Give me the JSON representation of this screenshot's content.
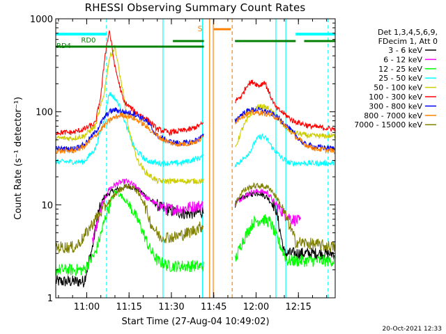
{
  "chart_data": {
    "type": "line",
    "title": "RHESSI Observing Summary Count Rates",
    "xlabel": "Start Time (27-Aug-04 10:49:02)",
    "ylabel": "Count Rate (s⁻¹ detector⁻¹)",
    "yscale": "log",
    "ylim": [
      1,
      1000
    ],
    "xlim_minutes_after_start": [
      0,
      99
    ],
    "x_ticks": [
      {
        "label": "11:00",
        "t": 10.97
      },
      {
        "label": "11:15",
        "t": 25.97
      },
      {
        "label": "11:30",
        "t": 40.97
      },
      {
        "label": "11:45",
        "t": 55.97
      },
      {
        "label": "12:00",
        "t": 70.97
      },
      {
        "label": "12:15",
        "t": 85.97
      }
    ],
    "y_ticks": [
      {
        "label": "1",
        "v": 1
      },
      {
        "label": "10",
        "v": 10
      },
      {
        "label": "100",
        "v": 100
      },
      {
        "label": "1000",
        "v": 1000
      }
    ],
    "legend": {
      "placement": "right",
      "header": [
        "Det 1,3,4,5,6,9,",
        "FDecim 1, Att 0"
      ]
    },
    "gap_minutes": [
      52.5,
      63.5
    ],
    "series": [
      {
        "name": "3 - 6 keV",
        "color": "#000000",
        "t": [
          0,
          7,
          10,
          13,
          15,
          17,
          20,
          23,
          26,
          30,
          34,
          38,
          42,
          46,
          50,
          52.5,
          63.5,
          66,
          69,
          72,
          75,
          78,
          81,
          99
        ],
        "values": [
          1.5,
          1.5,
          1.5,
          3.5,
          8,
          12,
          14,
          15,
          16,
          14,
          11,
          9,
          8.5,
          8,
          8.2,
          8.5,
          10,
          12,
          13,
          13.5,
          12,
          9,
          3,
          3
        ]
      },
      {
        "name": "6 - 12 keV",
        "color": "#ff00ff",
        "t": [
          13,
          16,
          19,
          22,
          25,
          28,
          32,
          36,
          40,
          44,
          48,
          52.5,
          63.5,
          66,
          69,
          72,
          75,
          78,
          81,
          84,
          87
        ],
        "values": [
          4,
          9,
          15,
          17,
          18,
          16,
          12,
          10,
          9,
          9,
          9.5,
          10,
          10,
          12,
          13.5,
          14,
          13.5,
          10,
          8,
          7,
          6.5
        ]
      },
      {
        "name": "12 - 25 keV",
        "color": "#00ff00",
        "t": [
          0,
          7,
          10,
          14,
          18,
          21,
          24,
          27,
          30,
          33,
          36,
          40,
          45,
          52.5,
          63.5,
          66,
          70,
          73,
          76,
          79,
          82,
          99
        ],
        "values": [
          2,
          2,
          2,
          3,
          8,
          14,
          12,
          9,
          6,
          3.5,
          2.5,
          2.2,
          2.2,
          2.2,
          2.5,
          4,
          6.5,
          7,
          6.5,
          4,
          2.5,
          2.5
        ]
      },
      {
        "name": "25 - 50 keV",
        "color": "#00ffff",
        "t": [
          0,
          6,
          10,
          14,
          17,
          19,
          21,
          23,
          25,
          28,
          32,
          36,
          40,
          44,
          48,
          52.5,
          63.5,
          66,
          69,
          71,
          73,
          75,
          77,
          80,
          83,
          90,
          99
        ],
        "values": [
          29,
          29,
          29,
          40,
          80,
          160,
          140,
          110,
          70,
          40,
          30,
          28,
          28,
          28,
          30,
          33,
          27,
          30,
          38,
          50,
          55,
          50,
          40,
          32,
          28,
          28,
          28
        ]
      },
      {
        "name": "50 - 100 keV",
        "color": "#cccc00",
        "t": [
          0,
          6,
          10,
          14,
          17,
          19,
          21,
          22,
          24,
          26,
          29,
          32,
          36,
          40,
          45,
          52.5,
          63.5,
          66,
          69,
          72,
          75,
          78,
          81,
          84,
          90,
          99
        ],
        "values": [
          52,
          52,
          55,
          70,
          150,
          380,
          500,
          330,
          150,
          60,
          30,
          22,
          18,
          18,
          18,
          18,
          40,
          65,
          95,
          115,
          110,
          90,
          70,
          60,
          55,
          55
        ]
      },
      {
        "name": "100 - 300 keV",
        "color": "#ff0000",
        "t": [
          0,
          6,
          10,
          14,
          16,
          17.5,
          19,
          21,
          24,
          28,
          32,
          36,
          40,
          44,
          48,
          52.5,
          63.5,
          66,
          68,
          70,
          72,
          74,
          76,
          78,
          81,
          84,
          90,
          99
        ],
        "values": [
          60,
          60,
          65,
          75,
          150,
          420,
          750,
          300,
          130,
          100,
          85,
          65,
          60,
          62,
          65,
          75,
          130,
          150,
          200,
          210,
          190,
          210,
          150,
          110,
          95,
          80,
          70,
          65
        ]
      },
      {
        "name": "300 - 800 keV",
        "color": "#0000ff",
        "t": [
          0,
          6,
          10,
          14,
          17,
          19,
          21,
          24,
          28,
          32,
          36,
          40,
          44,
          48,
          52.5,
          63.5,
          66,
          69,
          72,
          75,
          78,
          81,
          84,
          88,
          92,
          99
        ],
        "values": [
          40,
          40,
          44,
          60,
          85,
          100,
          105,
          100,
          95,
          80,
          55,
          48,
          46,
          47,
          55,
          80,
          95,
          105,
          105,
          100,
          90,
          75,
          60,
          45,
          42,
          40
        ]
      },
      {
        "name": "800 - 7000 keV",
        "color": "#ff8000",
        "t": [
          0,
          6,
          10,
          14,
          17,
          20,
          23,
          26,
          30,
          34,
          38,
          42,
          46,
          50,
          52.5,
          63.5,
          66,
          69,
          72,
          75,
          78,
          81,
          84,
          88,
          92,
          99
        ],
        "values": [
          38,
          38,
          42,
          55,
          70,
          85,
          92,
          90,
          78,
          62,
          50,
          45,
          45,
          48,
          54,
          78,
          90,
          97,
          98,
          95,
          88,
          72,
          58,
          45,
          40,
          38
        ]
      },
      {
        "name": "7000 - 15000 keV",
        "color": "#808000",
        "t": [
          0,
          7,
          10,
          14,
          18,
          22,
          25,
          28,
          31,
          34,
          37,
          42,
          47,
          52.5,
          63.5,
          66,
          70,
          73,
          76,
          79,
          82,
          85,
          99
        ],
        "values": [
          3.5,
          3.5,
          4.5,
          7,
          10,
          14,
          16,
          15,
          11,
          6,
          4.5,
          4.5,
          5,
          6,
          10,
          14,
          16,
          16,
          15,
          11,
          7,
          4,
          3.5
        ]
      }
    ],
    "state_bars": [
      {
        "label": "RD4",
        "color": "#008000",
        "segments": [
          [
            0,
            52.5
          ]
        ]
      },
      {
        "label": "RD0",
        "color": "#008000",
        "segments": [
          [
            41.5,
            52.5
          ],
          [
            63.5,
            85
          ],
          [
            88,
            99
          ]
        ]
      },
      {
        "label": "",
        "color": "#00ffff",
        "segments": [
          [
            0,
            18
          ],
          [
            85,
            99
          ]
        ]
      },
      {
        "label": "S",
        "color": "#ff8000",
        "segments": [
          [
            56,
            62
          ]
        ]
      }
    ],
    "vertical_markers": [
      {
        "t": 18,
        "color": "#00ffff",
        "style": "dashed"
      },
      {
        "t": 38,
        "color": "#00ffff",
        "style": "solid"
      },
      {
        "t": 52,
        "color": "#00ffff",
        "style": "solid"
      },
      {
        "t": 54.5,
        "color": "#ff8000",
        "style": "solid"
      },
      {
        "t": 55.8,
        "color": "#ff8000",
        "style": "solid"
      },
      {
        "t": 62.5,
        "color": "#ff8000",
        "style": "dashed"
      },
      {
        "t": 78,
        "color": "#00ffff",
        "style": "solid"
      },
      {
        "t": 81.5,
        "color": "#00ffff",
        "style": "solid"
      },
      {
        "t": 96.5,
        "color": "#00ffff",
        "style": "dashed"
      }
    ]
  },
  "footer": {
    "timestamp": "20-Oct-2021 12:33"
  }
}
